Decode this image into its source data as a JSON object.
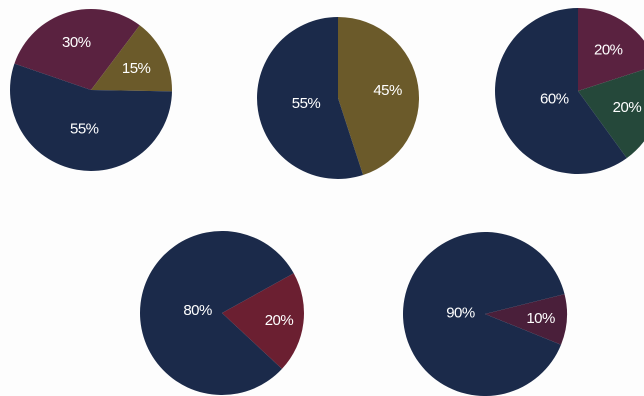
{
  "chart_data": [
    {
      "type": "pie",
      "slices": [
        {
          "label": "30%",
          "value": 30,
          "color": "#5a2240"
        },
        {
          "label": "15%",
          "value": 15,
          "color": "#6b5a2a"
        },
        {
          "label": "55%",
          "value": 55,
          "color": "#1b2a4a"
        }
      ]
    },
    {
      "type": "pie",
      "slices": [
        {
          "label": "45%",
          "value": 45,
          "color": "#6b5a2a"
        },
        {
          "label": "55%",
          "value": 55,
          "color": "#1b2a4a"
        }
      ]
    },
    {
      "type": "pie",
      "slices": [
        {
          "label": "20%",
          "value": 20,
          "color": "#5a2240"
        },
        {
          "label": "20%",
          "value": 20,
          "color": "#25483a"
        },
        {
          "label": "60%",
          "value": 60,
          "color": "#1b2a4a"
        }
      ]
    },
    {
      "type": "pie",
      "slices": [
        {
          "label": "20%",
          "value": 20,
          "color": "#6b1f31"
        },
        {
          "label": "80%",
          "value": 80,
          "color": "#1b2a4a"
        }
      ]
    },
    {
      "type": "pie",
      "slices": [
        {
          "label": "10%",
          "value": 10,
          "color": "#4a1f3a"
        },
        {
          "label": "90%",
          "value": 90,
          "color": "#1b2a4a"
        }
      ]
    }
  ]
}
